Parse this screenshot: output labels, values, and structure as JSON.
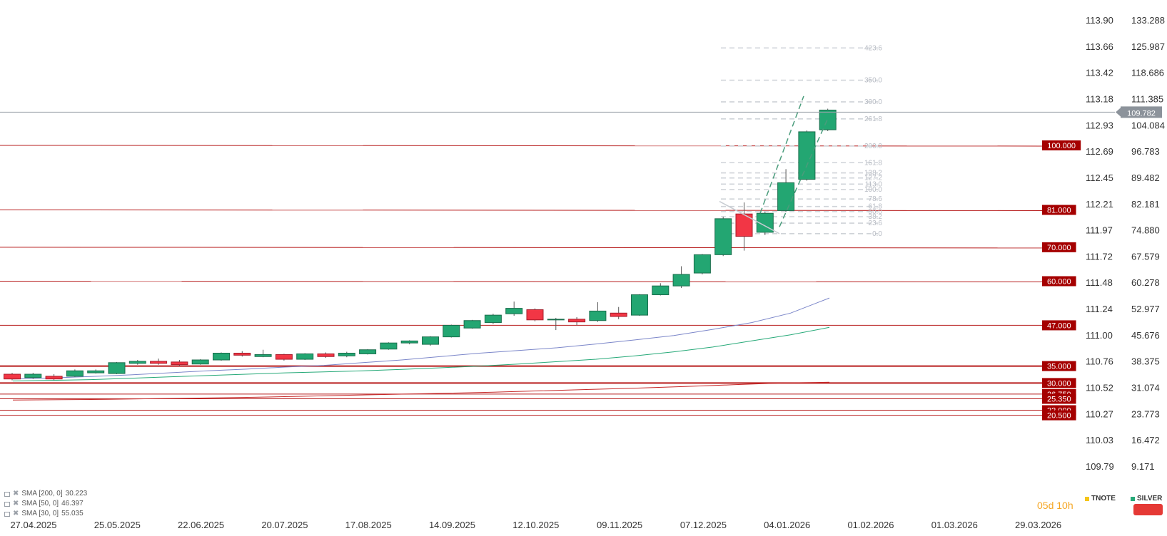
{
  "chart_data": {
    "type": "candlestick",
    "x_ticks": [
      "27.04.2025",
      "25.05.2025",
      "22.06.2025",
      "20.07.2025",
      "17.08.2025",
      "14.09.2025",
      "12.10.2025",
      "09.11.2025",
      "07.12.2025",
      "04.01.2026",
      "01.02.2026",
      "01.03.2026",
      "29.03.2026"
    ],
    "y_ticks_left": [
      "113.90",
      "113.66",
      "113.42",
      "113.18",
      "112.93",
      "112.69",
      "112.45",
      "112.21",
      "111.97",
      "111.72",
      "111.48",
      "111.24",
      "111.00",
      "110.76",
      "110.52",
      "110.27",
      "110.03",
      "109.79"
    ],
    "y_ticks_right": [
      "133.288",
      "125.987",
      "118.686",
      "111.385",
      "104.084",
      "96.783",
      "89.482",
      "82.181",
      "74.880",
      "67.579",
      "60.278",
      "52.977",
      "45.676",
      "38.375",
      "31.074",
      "23.773",
      "16.472",
      "9.171"
    ],
    "ylim_right": [
      5.52,
      136.94
    ],
    "current_price": "109.782",
    "candles": [
      {
        "o": 32.6,
        "c": 31.2,
        "h": 33.0,
        "l": 30.8
      },
      {
        "o": 31.6,
        "c": 32.6,
        "h": 33.0,
        "l": 31.2
      },
      {
        "o": 32.0,
        "c": 31.2,
        "h": 32.6,
        "l": 30.8
      },
      {
        "o": 32.0,
        "c": 33.6,
        "h": 34.0,
        "l": 31.8
      },
      {
        "o": 33.0,
        "c": 33.6,
        "h": 34.0,
        "l": 32.8
      },
      {
        "o": 32.8,
        "c": 36.0,
        "h": 36.2,
        "l": 32.6
      },
      {
        "o": 35.8,
        "c": 36.4,
        "h": 36.8,
        "l": 35.4
      },
      {
        "o": 36.4,
        "c": 35.8,
        "h": 37.2,
        "l": 35.4
      },
      {
        "o": 36.2,
        "c": 35.4,
        "h": 36.8,
        "l": 35.0
      },
      {
        "o": 35.6,
        "c": 36.8,
        "h": 37.0,
        "l": 35.4
      },
      {
        "o": 36.8,
        "c": 38.8,
        "h": 39.0,
        "l": 36.6
      },
      {
        "o": 38.8,
        "c": 38.2,
        "h": 39.4,
        "l": 37.8
      },
      {
        "o": 37.8,
        "c": 38.4,
        "h": 39.8,
        "l": 37.6
      },
      {
        "o": 38.4,
        "c": 37.0,
        "h": 38.6,
        "l": 36.6
      },
      {
        "o": 37.0,
        "c": 38.6,
        "h": 38.8,
        "l": 36.8
      },
      {
        "o": 38.6,
        "c": 37.8,
        "h": 39.0,
        "l": 37.4
      },
      {
        "o": 38.0,
        "c": 38.8,
        "h": 39.2,
        "l": 37.6
      },
      {
        "o": 38.6,
        "c": 39.8,
        "h": 40.0,
        "l": 38.4
      },
      {
        "o": 40.0,
        "c": 41.8,
        "h": 42.0,
        "l": 39.8
      },
      {
        "o": 41.8,
        "c": 42.4,
        "h": 42.6,
        "l": 41.4
      },
      {
        "o": 41.4,
        "c": 43.6,
        "h": 43.8,
        "l": 41.0
      },
      {
        "o": 43.6,
        "c": 47.0,
        "h": 47.2,
        "l": 43.4
      },
      {
        "o": 46.2,
        "c": 48.4,
        "h": 48.6,
        "l": 46.0
      },
      {
        "o": 47.8,
        "c": 50.0,
        "h": 50.4,
        "l": 47.4
      },
      {
        "o": 50.4,
        "c": 52.0,
        "h": 54.0,
        "l": 49.8
      },
      {
        "o": 51.6,
        "c": 48.6,
        "h": 52.0,
        "l": 48.2
      },
      {
        "o": 48.6,
        "c": 48.8,
        "h": 49.2,
        "l": 45.6
      },
      {
        "o": 48.8,
        "c": 48.0,
        "h": 49.4,
        "l": 47.0
      },
      {
        "o": 48.4,
        "c": 51.2,
        "h": 53.8,
        "l": 48.0
      },
      {
        "o": 50.6,
        "c": 49.6,
        "h": 52.4,
        "l": 48.8
      },
      {
        "o": 50.0,
        "c": 56.0,
        "h": 56.2,
        "l": 49.8
      },
      {
        "o": 56.0,
        "c": 58.6,
        "h": 59.4,
        "l": 55.8
      },
      {
        "o": 58.6,
        "c": 62.0,
        "h": 64.4,
        "l": 58.0
      },
      {
        "o": 62.4,
        "c": 67.8,
        "h": 68.0,
        "l": 62.0
      },
      {
        "o": 67.8,
        "c": 78.4,
        "h": 79.0,
        "l": 67.4
      },
      {
        "o": 79.8,
        "c": 73.2,
        "h": 83.2,
        "l": 69.0
      },
      {
        "o": 74.4,
        "c": 80.0,
        "h": 80.4,
        "l": 73.6
      },
      {
        "o": 80.8,
        "c": 89.0,
        "h": 93.0,
        "l": 80.4
      },
      {
        "o": 90.0,
        "c": 104.0,
        "h": 104.4,
        "l": 89.6
      },
      {
        "o": 104.6,
        "c": 110.4,
        "h": 110.8,
        "l": 104.2
      }
    ],
    "sma_series": [
      {
        "name": "SMA [200, 0]",
        "value": "30.223",
        "color": "#c62828",
        "values": [
          25.0,
          25.1,
          25.2,
          25.4,
          25.6,
          25.8,
          26.1,
          26.4,
          26.7,
          27.0,
          27.3,
          27.7,
          28.1,
          28.5,
          29.0,
          29.5,
          30.0,
          30.223
        ]
      },
      {
        "name": "SMA [50, 0]",
        "value": "46.397",
        "color": "#26a978",
        "values": [
          30.6,
          30.8,
          31.0,
          31.4,
          31.8,
          32.2,
          32.6,
          33.0,
          33.3,
          33.6,
          34.0,
          34.5,
          35.0,
          35.6,
          36.3,
          37.0,
          38.0,
          39.2,
          40.6,
          42.4,
          44.2,
          46.397
        ]
      },
      {
        "name": "SMA [30, 0]",
        "value": "55.035",
        "color": "#7b86c9",
        "values": [
          31.2,
          31.5,
          31.9,
          32.4,
          33.0,
          33.6,
          34.1,
          34.7,
          35.2,
          36.0,
          36.8,
          37.8,
          38.8,
          39.6,
          40.4,
          41.5,
          42.7,
          44.0,
          45.8,
          47.8,
          50.6,
          55.035
        ]
      }
    ],
    "levels": [
      "100.000",
      "81.000",
      "70.000",
      "60.000",
      "47.000",
      "35.000",
      "30.000",
      "26.750",
      "25.350",
      "22.000",
      "20.500"
    ],
    "fib_levels": [
      {
        "label": "423.6",
        "value": 128.7
      },
      {
        "label": "350.0",
        "value": 119.2
      },
      {
        "label": "300.0",
        "value": 112.8
      },
      {
        "label": "261.8",
        "value": 107.8
      },
      {
        "label": "200.0",
        "value": 99.8
      },
      {
        "label": "161.8",
        "value": 94.9
      },
      {
        "label": "138.2",
        "value": 91.9
      },
      {
        "label": "127.2",
        "value": 90.4
      },
      {
        "label": "113.0",
        "value": 88.6
      },
      {
        "label": "100.0",
        "value": 87.0
      },
      {
        "label": "78.6",
        "value": 84.2
      },
      {
        "label": "61.8",
        "value": 82.0
      },
      {
        "label": "50.0",
        "value": 80.5
      },
      {
        "label": "38.2",
        "value": 79.0
      },
      {
        "label": "23.6",
        "value": 77.1
      },
      {
        "label": "0.0",
        "value": 74.0
      }
    ],
    "legend": {
      "countdown": "05d 10h",
      "symbol_a": "TNOTE",
      "symbol_b": "SILVER"
    }
  }
}
